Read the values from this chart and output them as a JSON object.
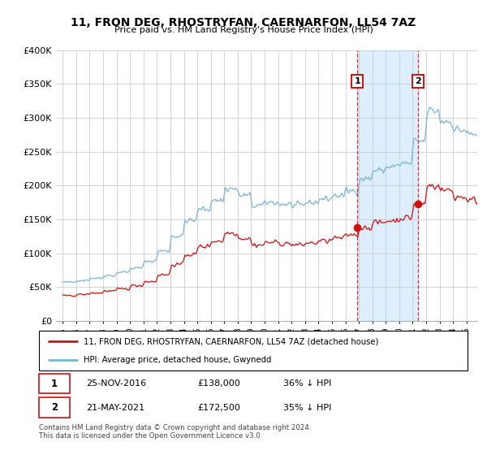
{
  "title": "11, FRON DEG, RHOSTRYFAN, CAERNARFON, LL54 7AZ",
  "subtitle": "Price paid vs. HM Land Registry's House Price Index (HPI)",
  "legend_line1": "11, FRON DEG, RHOSTRYFAN, CAERNARFON, LL54 7AZ (detached house)",
  "legend_line2": "HPI: Average price, detached house, Gwynedd",
  "footer": "Contains HM Land Registry data © Crown copyright and database right 2024.\nThis data is licensed under the Open Government Licence v3.0.",
  "annotation1_label": "1",
  "annotation1_date": "25-NOV-2016",
  "annotation1_price": "£138,000",
  "annotation1_hpi": "36% ↓ HPI",
  "annotation2_label": "2",
  "annotation2_date": "21-MAY-2021",
  "annotation2_price": "£172,500",
  "annotation2_hpi": "35% ↓ HPI",
  "hpi_color": "#7ab4d4",
  "price_color": "#cc1111",
  "annotation_color": "#cc1111",
  "shade_color": "#ddeeff",
  "background_color": "#ffffff",
  "ylim": [
    0,
    400000
  ],
  "yticks": [
    0,
    50000,
    100000,
    150000,
    200000,
    250000,
    300000,
    350000,
    400000
  ],
  "ytick_labels": [
    "£0",
    "£50K",
    "£100K",
    "£150K",
    "£200K",
    "£250K",
    "£300K",
    "£350K",
    "£400K"
  ],
  "sale1_x": 2016.9,
  "sale1_y": 138000,
  "sale2_x": 2021.38,
  "sale2_y": 172500,
  "xlim_left": 1994.5,
  "xlim_right": 2025.8,
  "xtick_years": [
    1995,
    1996,
    1997,
    1998,
    1999,
    2000,
    2001,
    2002,
    2003,
    2004,
    2005,
    2006,
    2007,
    2008,
    2009,
    2010,
    2011,
    2012,
    2013,
    2014,
    2015,
    2016,
    2017,
    2018,
    2019,
    2020,
    2021,
    2022,
    2023,
    2024,
    2025
  ]
}
